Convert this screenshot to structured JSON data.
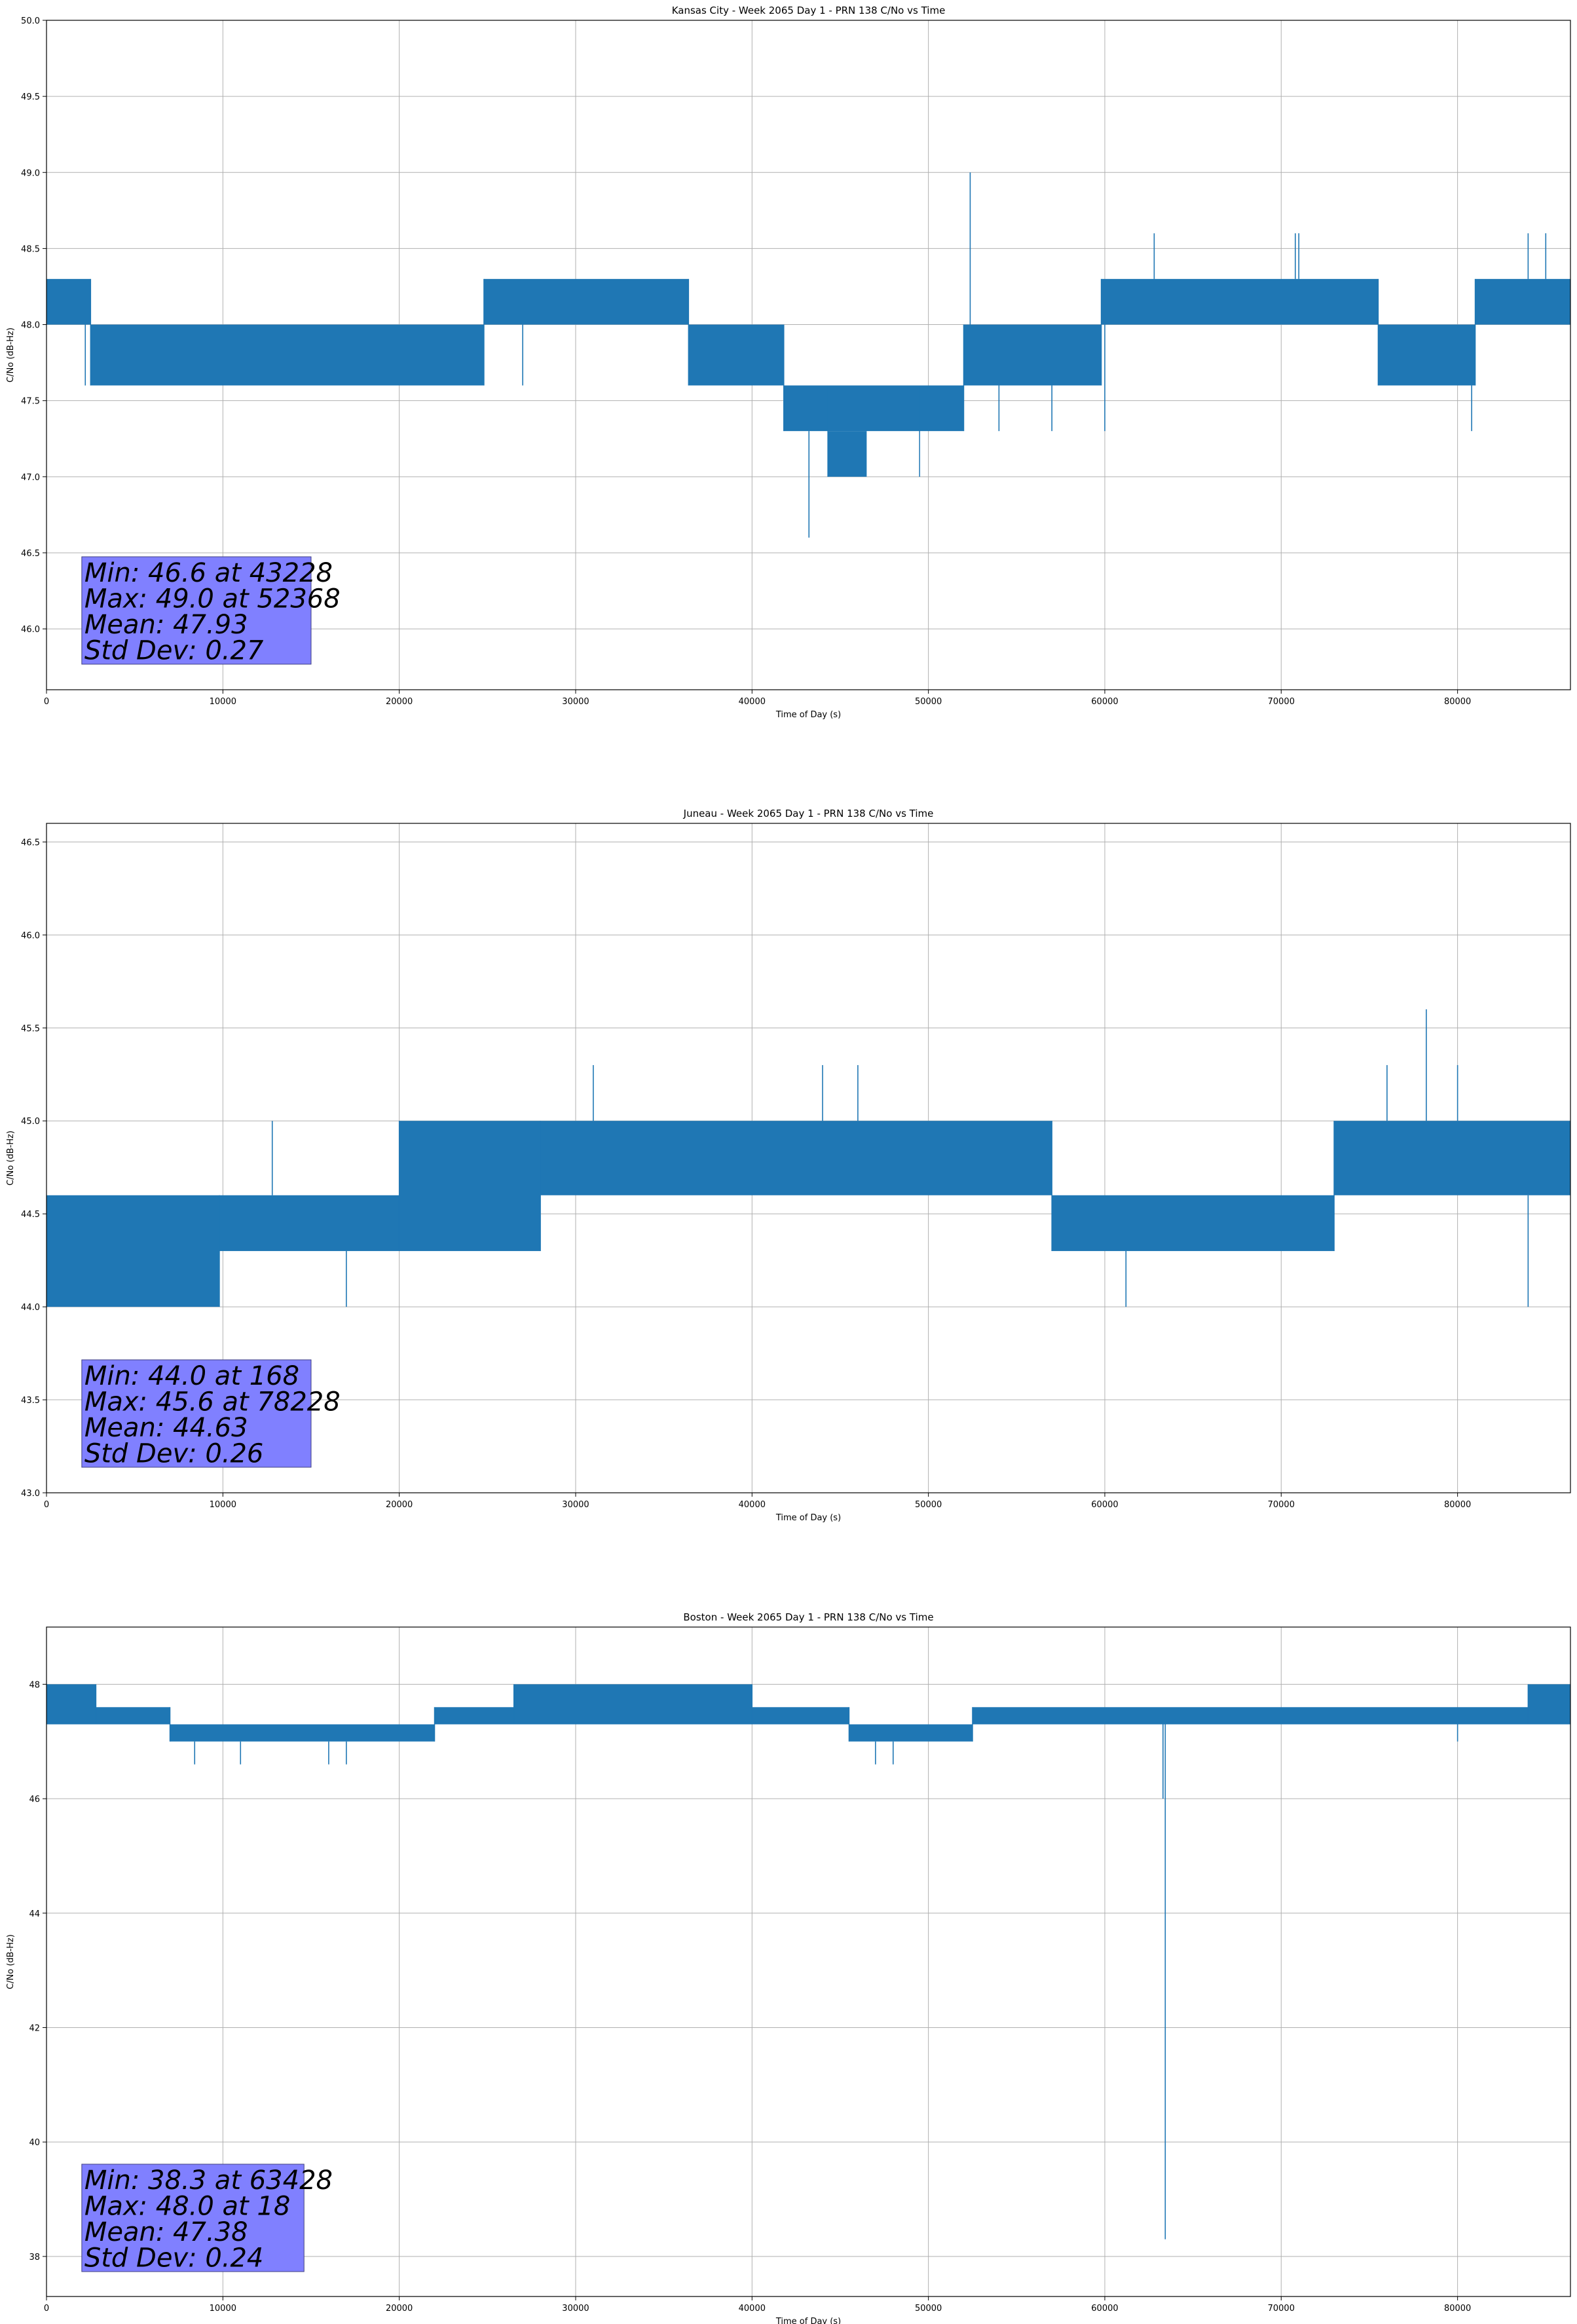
{
  "figure": {
    "line_color": "#1f77b4",
    "stat_box_color": "#8080ff",
    "grid": true
  },
  "chart_data": [
    {
      "type": "line",
      "title": "Kansas City - Week 2065 Day 1 - PRN 138 C/No vs Time",
      "xlabel": "Time of Day (s)",
      "ylabel": "C/No (dB-Hz)",
      "xlim": [
        0,
        86400
      ],
      "ylim": [
        45.6,
        50.0
      ],
      "xticks": [
        0,
        10000,
        20000,
        30000,
        40000,
        50000,
        60000,
        70000,
        80000
      ],
      "yticks": [
        46.0,
        46.5,
        47.0,
        47.5,
        48.0,
        48.5,
        49.0,
        49.5,
        50.0
      ],
      "ytick_decimals": 1,
      "series": [
        {
          "name": "C/No",
          "segments": [
            {
              "x0": 0,
              "x1": 2500,
              "levels": [
                48.0,
                48.3
              ]
            },
            {
              "x0": 2500,
              "x1": 24800,
              "levels": [
                47.6,
                48.0
              ]
            },
            {
              "x0": 24800,
              "x1": 36400,
              "levels": [
                48.0,
                48.3
              ]
            },
            {
              "x0": 36400,
              "x1": 41800,
              "levels": [
                47.6,
                48.0
              ]
            },
            {
              "x0": 41800,
              "x1": 49500,
              "levels": [
                47.3,
                47.6
              ]
            },
            {
              "x0": 44300,
              "x1": 46500,
              "levels": [
                47.0,
                47.3
              ]
            },
            {
              "x0": 49500,
              "x1": 52000,
              "levels": [
                47.3,
                47.6
              ]
            },
            {
              "x0": 52000,
              "x1": 59800,
              "levels": [
                47.6,
                48.0
              ]
            },
            {
              "x0": 59800,
              "x1": 75500,
              "levels": [
                48.0,
                48.3
              ]
            },
            {
              "x0": 75500,
              "x1": 81000,
              "levels": [
                47.6,
                48.0
              ]
            },
            {
              "x0": 81000,
              "x1": 86400,
              "levels": [
                48.0,
                48.3
              ]
            }
          ],
          "spikes": [
            [
              43228,
              46.6
            ],
            [
              52368,
              49.0
            ],
            [
              60000,
              47.3
            ],
            [
              80800,
              47.3
            ],
            [
              62800,
              48.6
            ],
            [
              70800,
              48.6
            ],
            [
              71000,
              48.6
            ],
            [
              84000,
              48.6
            ],
            [
              85000,
              48.6
            ],
            [
              2200,
              47.6
            ],
            [
              27000,
              47.6
            ],
            [
              54000,
              47.3
            ],
            [
              57000,
              47.3
            ]
          ]
        }
      ],
      "stats": [
        "Min: 46.6 at 43228",
        "Max: 49.0 at 52368",
        "Mean: 47.93",
        "Std Dev: 0.27"
      ]
    },
    {
      "type": "line",
      "title": "Juneau - Week 2065 Day 1 - PRN 138 C/No vs Time",
      "xlabel": "Time of Day (s)",
      "ylabel": "C/No (dB-Hz)",
      "xlim": [
        0,
        86400
      ],
      "ylim": [
        43.0,
        46.6
      ],
      "xticks": [
        0,
        10000,
        20000,
        30000,
        40000,
        50000,
        60000,
        70000,
        80000
      ],
      "yticks": [
        43.0,
        43.5,
        44.0,
        44.5,
        45.0,
        45.5,
        46.0,
        46.5
      ],
      "ytick_decimals": 1,
      "series": [
        {
          "name": "C/No",
          "segments": [
            {
              "x0": 0,
              "x1": 9800,
              "levels": [
                44.0,
                44.6
              ]
            },
            {
              "x0": 9800,
              "x1": 20000,
              "levels": [
                44.3,
                44.6
              ]
            },
            {
              "x0": 20000,
              "x1": 28000,
              "levels": [
                44.3,
                45.0
              ]
            },
            {
              "x0": 28000,
              "x1": 57000,
              "levels": [
                44.6,
                45.0
              ]
            },
            {
              "x0": 57000,
              "x1": 73000,
              "levels": [
                44.3,
                44.6
              ]
            },
            {
              "x0": 73000,
              "x1": 86400,
              "levels": [
                44.6,
                45.0
              ]
            }
          ],
          "spikes": [
            [
              168,
              44.0
            ],
            [
              78228,
              45.6
            ],
            [
              61200,
              44.0
            ],
            [
              84000,
              44.0
            ],
            [
              31000,
              45.3
            ],
            [
              44000,
              45.3
            ],
            [
              46000,
              45.3
            ],
            [
              76000,
              45.3
            ],
            [
              80000,
              45.3
            ],
            [
              17000,
              44.0
            ],
            [
              12800,
              45.0
            ]
          ]
        }
      ],
      "stats": [
        "Min: 44.0 at 168",
        "Max: 45.6 at 78228",
        "Mean: 44.63",
        "Std Dev: 0.26"
      ]
    },
    {
      "type": "line",
      "title": "Boston - Week 2065 Day 1 - PRN 138 C/No vs Time",
      "xlabel": "Time of Day (s)",
      "ylabel": "C/No (dB-Hz)",
      "xlim": [
        0,
        86400
      ],
      "ylim": [
        37.3,
        49.0
      ],
      "xticks": [
        0,
        10000,
        20000,
        30000,
        40000,
        50000,
        60000,
        70000,
        80000
      ],
      "yticks": [
        38,
        40,
        42,
        44,
        46,
        48
      ],
      "ytick_decimals": 0,
      "series": [
        {
          "name": "C/No",
          "segments": [
            {
              "x0": 0,
              "x1": 2800,
              "levels": [
                47.3,
                48.0
              ]
            },
            {
              "x0": 2800,
              "x1": 7000,
              "levels": [
                47.3,
                47.6
              ]
            },
            {
              "x0": 7000,
              "x1": 22000,
              "levels": [
                47.0,
                47.3
              ]
            },
            {
              "x0": 22000,
              "x1": 26500,
              "levels": [
                47.3,
                47.6
              ]
            },
            {
              "x0": 26500,
              "x1": 40000,
              "levels": [
                47.3,
                48.0
              ]
            },
            {
              "x0": 40000,
              "x1": 45500,
              "levels": [
                47.3,
                47.6
              ]
            },
            {
              "x0": 45500,
              "x1": 52500,
              "levels": [
                47.0,
                47.3
              ]
            },
            {
              "x0": 52500,
              "x1": 84000,
              "levels": [
                47.3,
                47.6
              ]
            },
            {
              "x0": 84000,
              "x1": 86400,
              "levels": [
                47.3,
                48.0
              ]
            }
          ],
          "spikes": [
            [
              63428,
              38.3
            ],
            [
              18,
              48.0
            ],
            [
              8400,
              46.6
            ],
            [
              11000,
              46.6
            ],
            [
              16000,
              46.6
            ],
            [
              17000,
              46.6
            ],
            [
              47000,
              46.6
            ],
            [
              48000,
              46.6
            ],
            [
              80000,
              47.0
            ],
            [
              63300,
              46.0
            ]
          ]
        }
      ],
      "stats": [
        "Min: 38.3 at 63428",
        "Max: 48.0 at 18",
        "Mean: 47.38",
        "Std Dev: 0.24"
      ]
    }
  ]
}
